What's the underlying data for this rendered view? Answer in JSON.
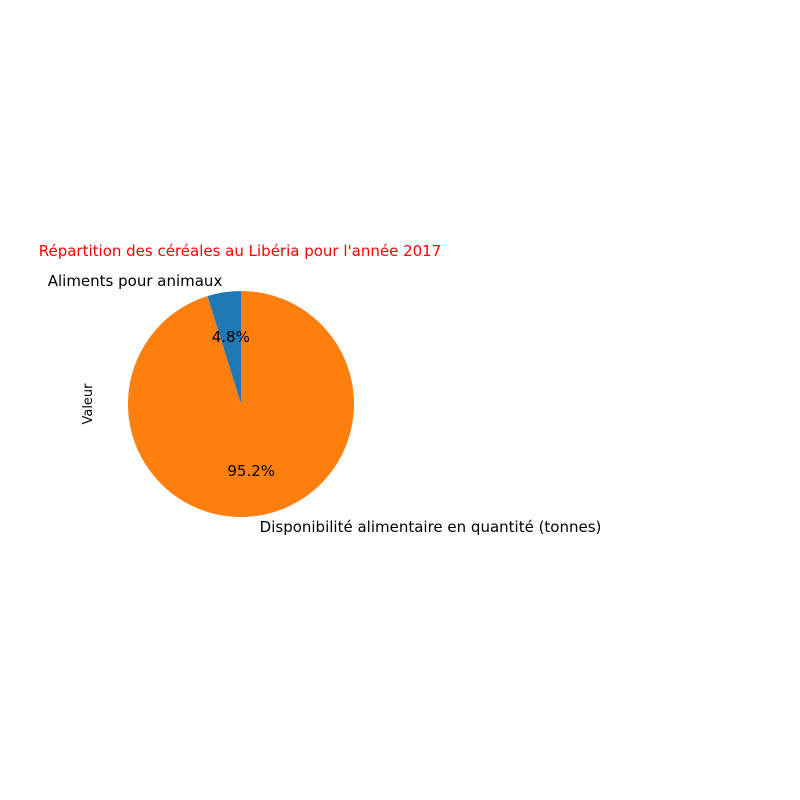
{
  "chart_data": {
    "type": "pie",
    "title": "Répartition des céréales au Libéria pour l'année 2017",
    "title_color": "#ff0000",
    "ylabel": "Valeur",
    "start_angle_deg": 90,
    "direction": "counterclockwise",
    "slices": [
      {
        "label": "Aliments pour animaux",
        "percent_label": "4.8%",
        "share": 0.048,
        "color": "#1f77b4"
      },
      {
        "label": "Disponibilité alimentaire en quantité (tonnes)",
        "percent_label": "95.2%",
        "share": 0.952,
        "color": "#ff7f0e"
      }
    ]
  }
}
